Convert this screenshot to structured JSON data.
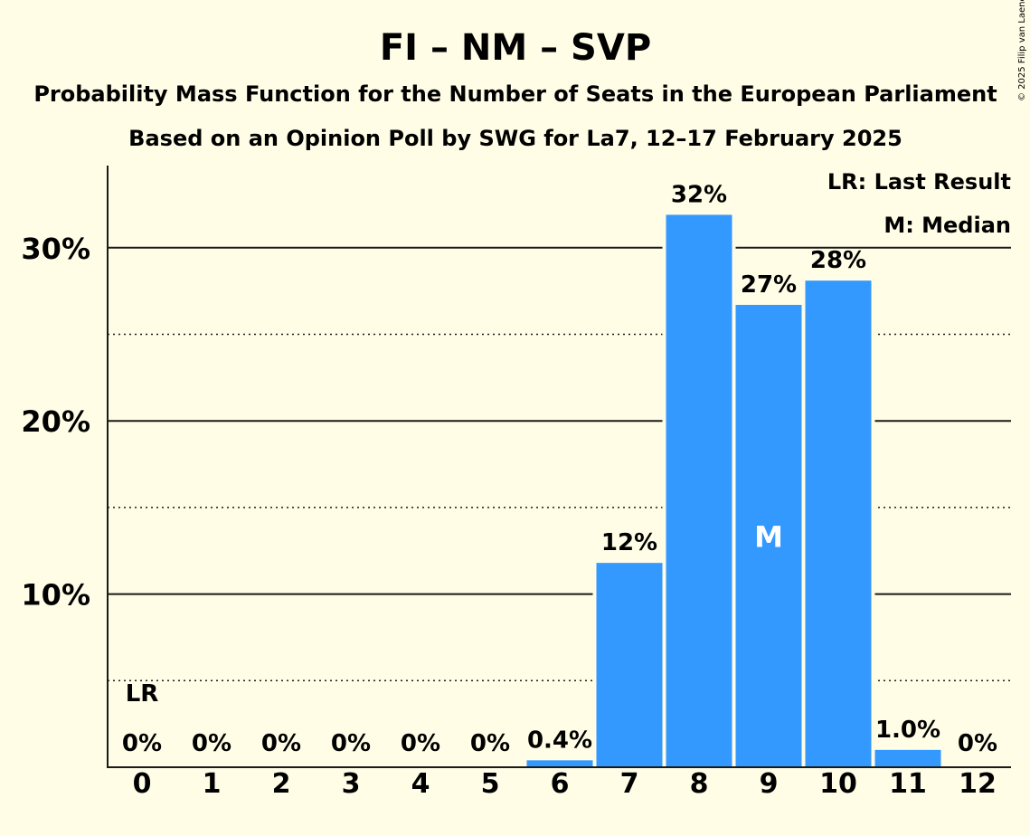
{
  "chart_data": {
    "type": "bar",
    "title": "FI – NM – SVP",
    "subtitle": "Probability Mass Function for the Number of Seats in the European Parliament",
    "subtitle2": "Based on an Opinion Poll by SWG for La7, 12–17 February 2025",
    "copyright": "© 2025 Filip van Laenen",
    "categories": [
      "0",
      "1",
      "2",
      "3",
      "4",
      "5",
      "6",
      "7",
      "8",
      "9",
      "10",
      "11",
      "12"
    ],
    "values": [
      0,
      0,
      0,
      0,
      0,
      0,
      0.4,
      11.8,
      31.9,
      26.7,
      28.1,
      1.0,
      0
    ],
    "value_labels": [
      "0%",
      "0%",
      "0%",
      "0%",
      "0%",
      "0%",
      "0.4%",
      "12%",
      "32%",
      "27%",
      "28%",
      "1.0%",
      "0%"
    ],
    "ylim": [
      0,
      35
    ],
    "yticks": [
      10,
      20,
      30
    ],
    "ytick_labels": [
      "10%",
      "20%",
      "30%"
    ],
    "minor_gridlines": [
      5,
      15,
      25
    ],
    "bar_color": "#3399ff",
    "last_result": {
      "index": 0,
      "marker": "LR"
    },
    "median": {
      "index": 9,
      "marker": "M"
    },
    "legend": {
      "last_result": "LR: Last Result",
      "median": "M: Median",
      "position": "top-right"
    }
  }
}
